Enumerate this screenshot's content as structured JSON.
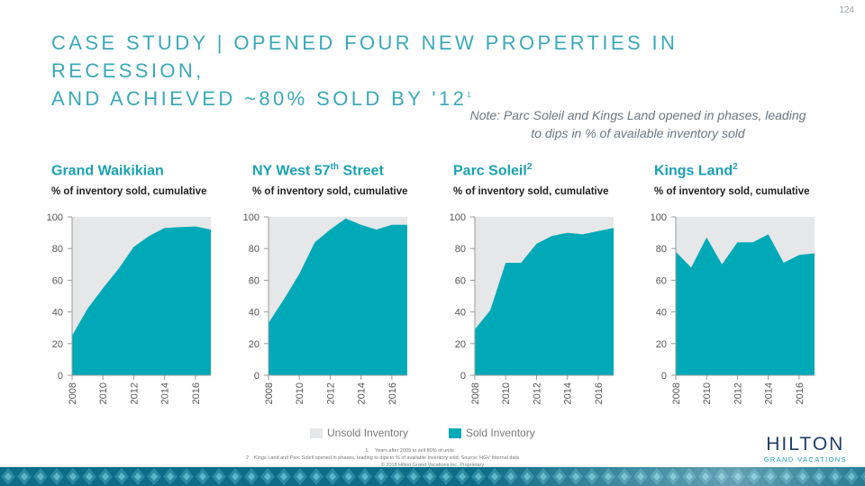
{
  "page_number": "124",
  "title": {
    "line1": "CASE STUDY | OPENED FOUR NEW PROPERTIES IN RECESSION,",
    "line2": "AND ACHIEVED ~80% SOLD BY '12",
    "footnote_marker": "1"
  },
  "note": "Note: Parc Soleil and Kings Land opened in phases, leading to dips in % of available inventory sold",
  "legend": {
    "unsold": "Unsold Inventory",
    "sold": "Sold Inventory"
  },
  "colors": {
    "sold": "#00a9b8",
    "unsold": "#e6e7e8",
    "title": "#3aa9b8",
    "panel_title": "#1aa2b2",
    "brand_navy": "#1f3e67"
  },
  "footnotes": [
    {
      "num": "1.",
      "text": "Years after 2009 to sell 80% of units"
    },
    {
      "num": "2",
      "text": "Kings Land and Parc Soleil opened in phases, leading to dips in % of available inventory sold; Source: HGV Internal data"
    }
  ],
  "copyright": "© 2018 Hilton Grand Vacations Inc. Proprietary",
  "logo": {
    "main": "HILTON",
    "sub": "GRAND VACATIONS"
  },
  "chart_data": [
    {
      "type": "area",
      "title": "Grand Waikikian",
      "title_sup": "",
      "subtitle": "% of inventory sold, cumulative",
      "x": [
        2008,
        2009,
        2010,
        2011,
        2012,
        2013,
        2014,
        2015,
        2016,
        2017
      ],
      "values": [
        25,
        42,
        55,
        67,
        81,
        88,
        93,
        93.5,
        94,
        92
      ],
      "ylim": [
        0,
        100
      ],
      "yticks": [
        0,
        20,
        40,
        60,
        80,
        100
      ],
      "xticks": [
        "2008",
        "2010",
        "2012",
        "2014",
        "2016"
      ]
    },
    {
      "type": "area",
      "title": "NY West 57",
      "title_sup": "th",
      "title_suffix": " Street",
      "subtitle": "% of inventory sold, cumulative",
      "x": [
        2008,
        2009,
        2010,
        2011,
        2012,
        2013,
        2014,
        2015,
        2016,
        2017
      ],
      "values": [
        33,
        48,
        64,
        84,
        92,
        99,
        95,
        92,
        95,
        95
      ],
      "ylim": [
        0,
        100
      ],
      "yticks": [
        0,
        20,
        40,
        60,
        80,
        100
      ],
      "xticks": [
        "2008",
        "2010",
        "2012",
        "2014",
        "2016"
      ]
    },
    {
      "type": "area",
      "title": "Parc Soleil",
      "title_sup": "2",
      "subtitle": "% of inventory sold, cumulative",
      "x": [
        2008,
        2009,
        2010,
        2011,
        2012,
        2013,
        2014,
        2015,
        2016,
        2017
      ],
      "values": [
        29,
        41,
        71,
        71,
        83,
        88,
        90,
        89,
        91,
        93
      ],
      "ylim": [
        0,
        100
      ],
      "yticks": [
        0,
        20,
        40,
        60,
        80,
        100
      ],
      "xticks": [
        "2008",
        "2010",
        "2012",
        "2014",
        "2016"
      ]
    },
    {
      "type": "area",
      "title": "Kings Land",
      "title_sup": "2",
      "subtitle": "% of inventory sold, cumulative",
      "x": [
        2008,
        2009,
        2010,
        2011,
        2012,
        2013,
        2014,
        2015,
        2016,
        2017
      ],
      "values": [
        78,
        68,
        87,
        70,
        84,
        84,
        89,
        71,
        76,
        77
      ],
      "ylim": [
        0,
        100
      ],
      "yticks": [
        0,
        20,
        40,
        60,
        80,
        100
      ],
      "xticks": [
        "2008",
        "2010",
        "2012",
        "2014",
        "2016"
      ]
    }
  ]
}
